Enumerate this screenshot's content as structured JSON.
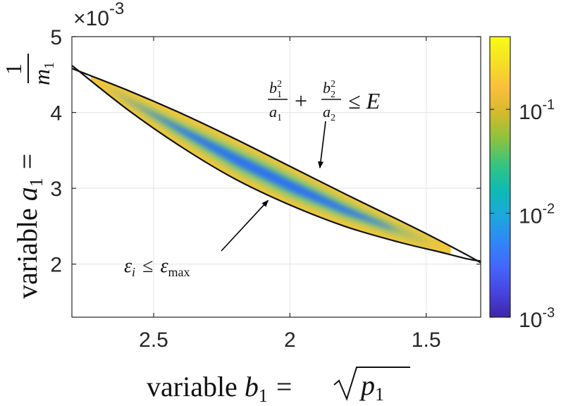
{
  "chart_data": {
    "type": "heatmap",
    "xlabel_text": "variable ",
    "xlabel_var": "b",
    "xlabel_sub": "1",
    "xlabel_rel": "=",
    "xlabel_sqrt_var": "p",
    "xlabel_sqrt_sub": "1",
    "ylabel_text": "variable ",
    "ylabel_var": "a",
    "ylabel_sub": "1",
    "ylabel_rel": "=",
    "ylabel_frac_num": "1",
    "ylabel_frac_den": "m",
    "ylabel_frac_den_sub": "1",
    "xlim": [
      1.3,
      2.8
    ],
    "x_reversed": true,
    "x_ticks": [
      2.5,
      2,
      1.5
    ],
    "x_tick_labels": [
      "2.5",
      "2",
      "1.5"
    ],
    "ylim": [
      1.3,
      5
    ],
    "y_ticks": [
      2,
      3,
      4,
      5
    ],
    "y_tick_labels": [
      "2",
      "3",
      "4",
      "5"
    ],
    "y_multiplier_base": "×10",
    "y_multiplier_exp": "-3",
    "grid": true,
    "colorbar": {
      "scale": "log",
      "range": [
        0.001,
        0.5
      ],
      "tick_labels": [
        {
          "value": 0.1,
          "base": "10",
          "exp": "-1"
        },
        {
          "value": 0.01,
          "base": "10",
          "exp": "-2"
        },
        {
          "value": 0.001,
          "base": "10",
          "exp": "-3"
        }
      ]
    },
    "upper_boundary": {
      "x": [
        2.8,
        2.6,
        2.4,
        2.2,
        2.0,
        1.8,
        1.6,
        1.45,
        1.35,
        1.3
      ],
      "y": [
        4.58,
        4.3,
        3.99,
        3.65,
        3.29,
        2.93,
        2.58,
        2.31,
        2.12,
        2.02
      ]
    },
    "lower_boundary": {
      "x": [
        2.8,
        2.6,
        2.4,
        2.2,
        2.0,
        1.8,
        1.6,
        1.45,
        1.35,
        1.3
      ],
      "y": [
        4.62,
        4.05,
        3.55,
        3.12,
        2.78,
        2.5,
        2.29,
        2.16,
        2.07,
        2.04
      ]
    },
    "intersections": [
      {
        "x": 2.73,
        "y": 4.53
      },
      {
        "x": 1.41,
        "y": 2.1
      }
    ],
    "annotations": [
      {
        "id": "energy_constraint",
        "f1_num_var": "b",
        "f1_num_sub": "1",
        "f1_num_sup": "2",
        "f1_den_var": "a",
        "f1_den_sub": "1",
        "plus": "+",
        "f2_num_var": "b",
        "f2_num_sub": "2",
        "f2_num_sup": "2",
        "f2_den_var": "a",
        "f2_den_sub": "2",
        "rel": "≤",
        "rhs": "E",
        "arrow_to": {
          "x": 1.89,
          "y": 3.27
        }
      },
      {
        "id": "strain_constraint",
        "lhs_var": "ε",
        "lhs_sub": "i",
        "rel": "≤",
        "rhs_var": "ε",
        "rhs_sub": "max",
        "arrow_to": {
          "x": 2.08,
          "y": 2.84
        }
      }
    ],
    "colormap": [
      "#3e26a8",
      "#4745e2",
      "#4367fd",
      "#2f88f6",
      "#1ca8dc",
      "#0dbbb2",
      "#36c47f",
      "#8cc23e",
      "#d3ba2c",
      "#fcbe3c",
      "#f5e025",
      "#f9fb15"
    ]
  }
}
